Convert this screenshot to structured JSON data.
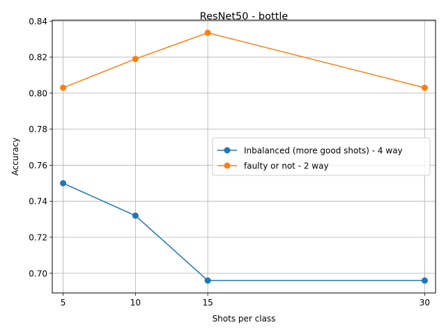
{
  "chart_data": {
    "type": "line",
    "title": "ResNet50 - bottle",
    "xlabel": "Shots per class",
    "ylabel": "Accuracy",
    "x": [
      5,
      10,
      15,
      30
    ],
    "xticks": [
      5,
      10,
      15,
      30
    ],
    "xlim": [
      4.25,
      30.75
    ],
    "ylim": [
      0.6891,
      0.8405
    ],
    "yticks": [
      0.7,
      0.72,
      0.74,
      0.76,
      0.78,
      0.8,
      0.82,
      0.84
    ],
    "grid": true,
    "legend_position": "center-right",
    "series": [
      {
        "name": "Inbalanced (more good shots) - 4 way",
        "color": "#1f77b4",
        "values": [
          0.75,
          0.732,
          0.696,
          0.696
        ]
      },
      {
        "name": "faulty or not - 2 way",
        "color": "#ff7f0e",
        "values": [
          0.803,
          0.819,
          0.8335,
          0.803
        ]
      }
    ]
  }
}
